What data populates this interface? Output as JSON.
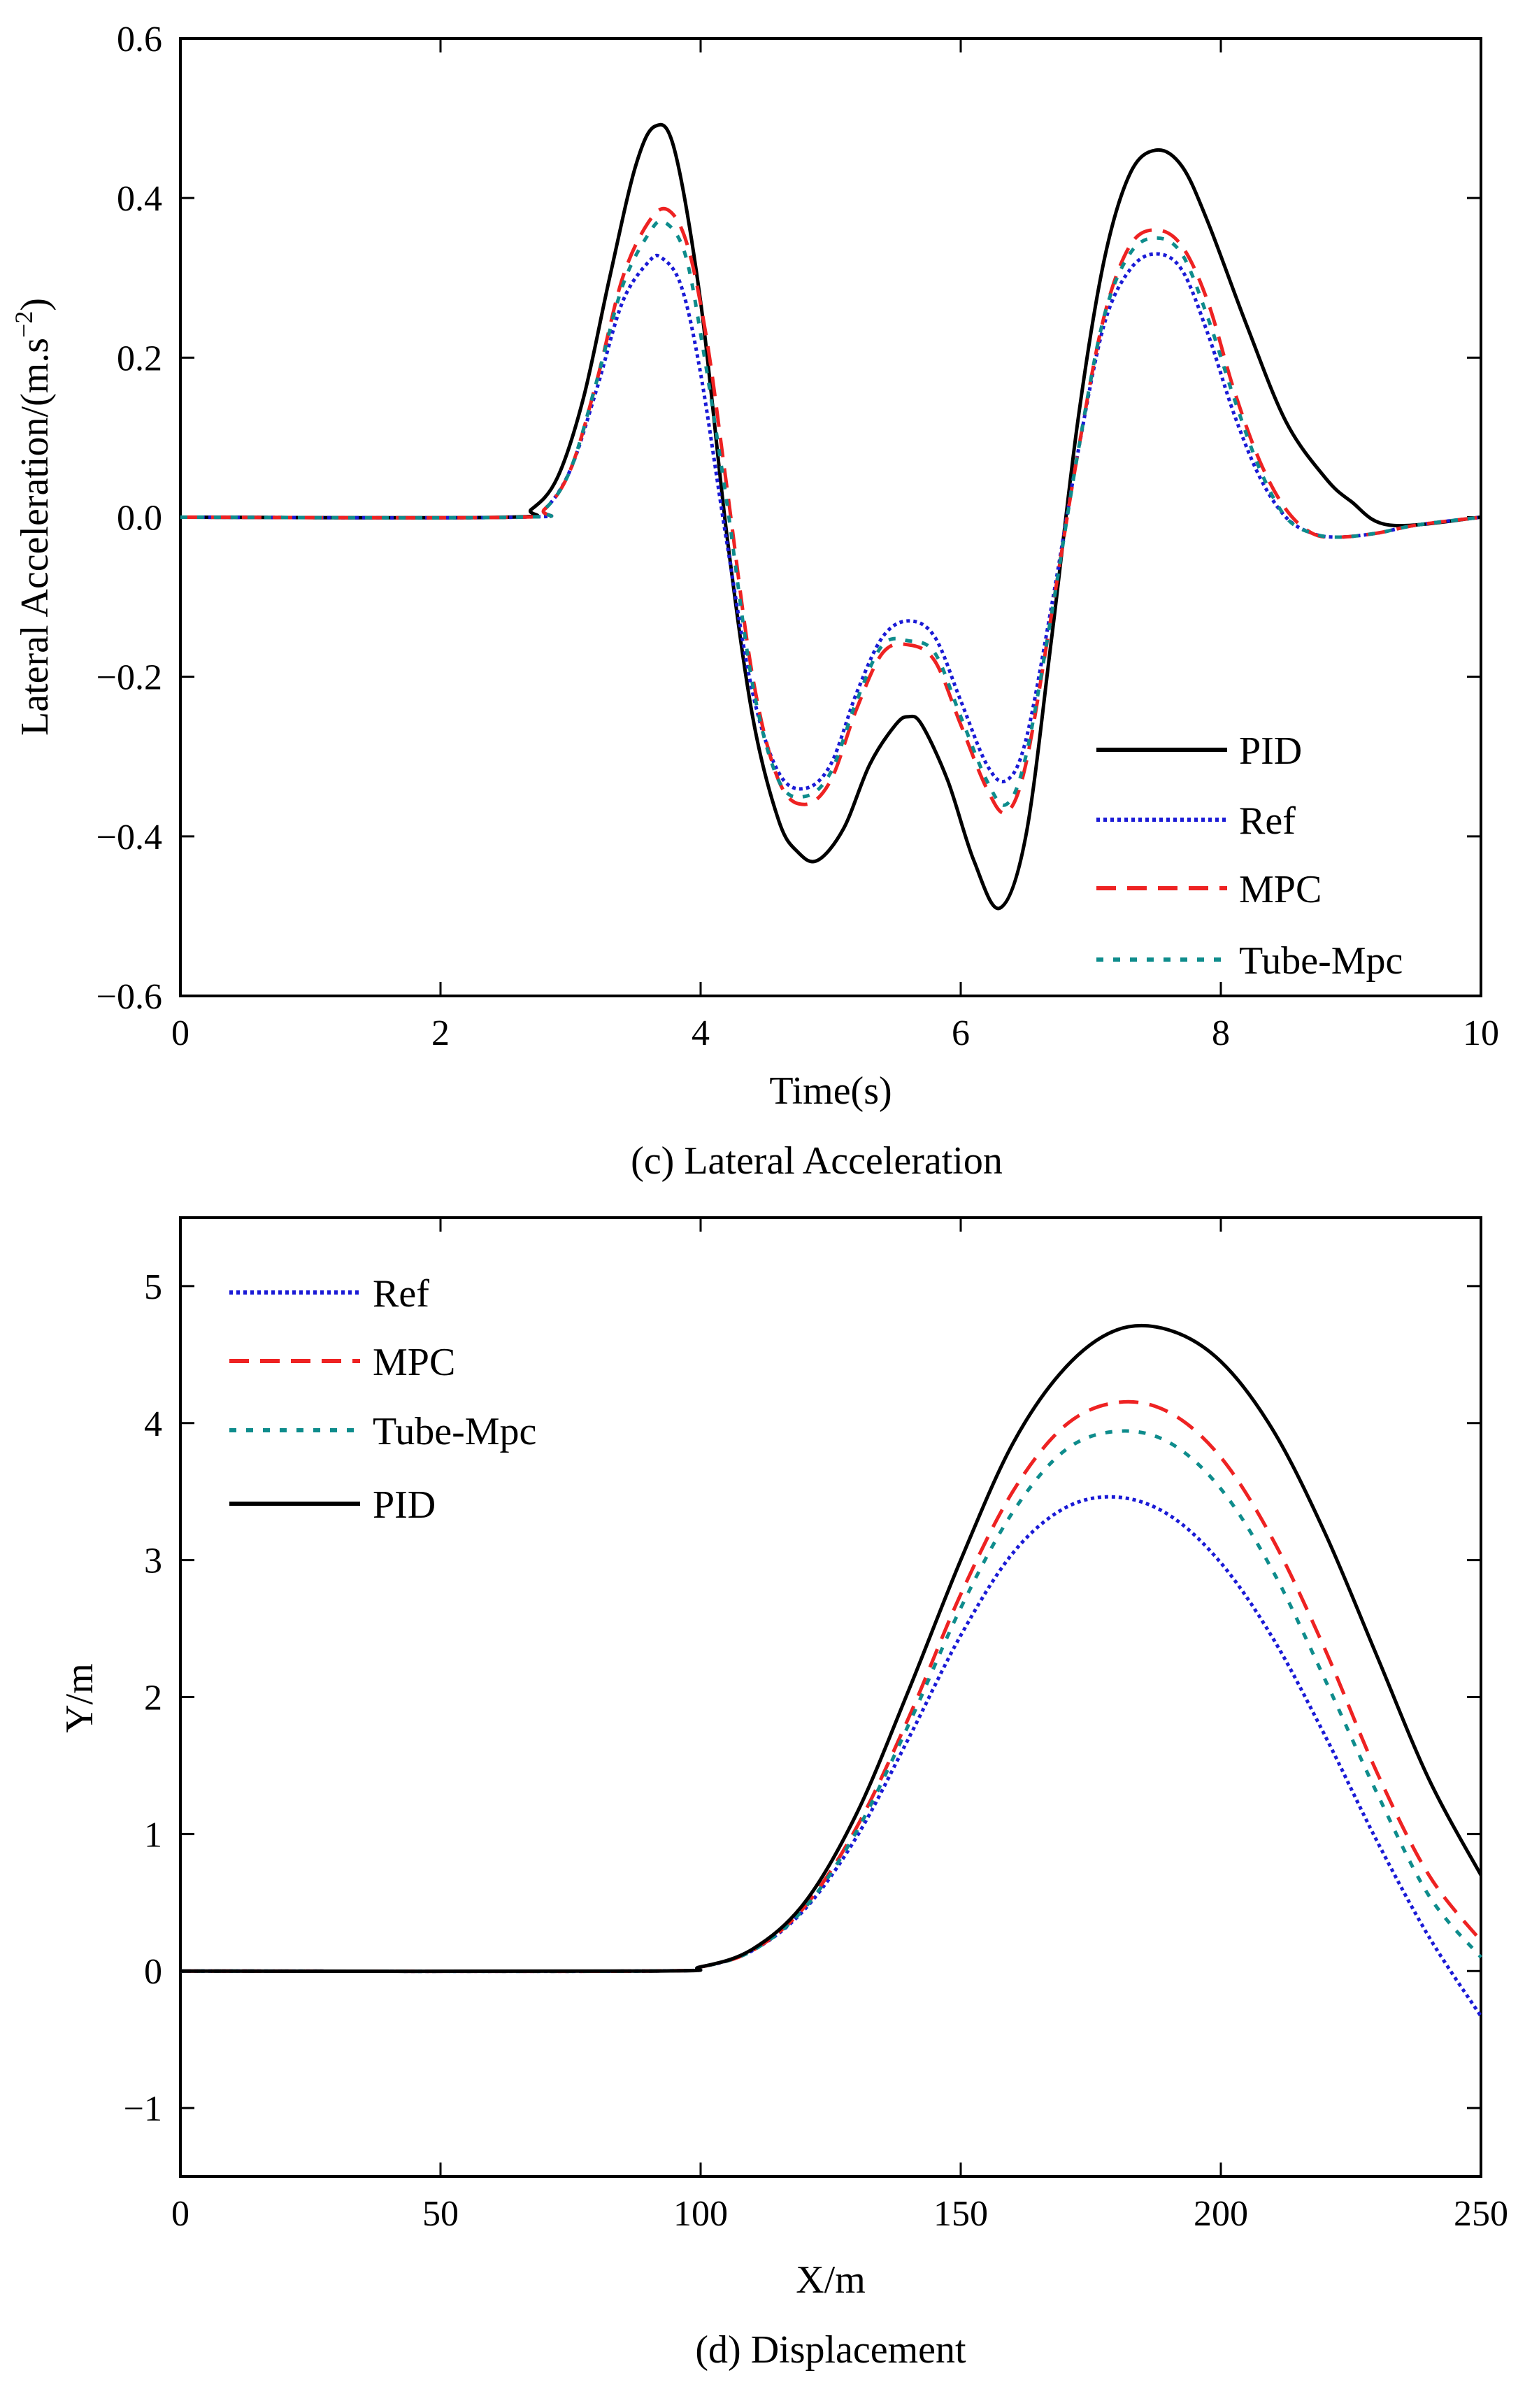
{
  "chart_data": [
    {
      "type": "line",
      "title": "",
      "caption": "(c) Lateral Acceleration",
      "xlabel": "Time(s)",
      "ylabel": "Lateral Acceleration/(m.s",
      "ylabel_sup": "−2",
      "ylabel_close": ")",
      "xlim": [
        0,
        10
      ],
      "ylim": [
        -0.6,
        0.6
      ],
      "xticks": [
        0,
        2,
        4,
        6,
        8,
        10
      ],
      "xtick_labels": [
        "0",
        "2",
        "4",
        "6",
        "8",
        "10"
      ],
      "yticks": [
        -0.6,
        -0.4,
        -0.2,
        0.0,
        0.2,
        0.4,
        0.6
      ],
      "ytick_labels": [
        "−0.6",
        "−0.4",
        "−0.2",
        "0.0",
        "0.2",
        "0.4",
        "0.6"
      ],
      "legend_position": "bottom-right",
      "legend_order": [
        "PID",
        "Ref",
        "MPC",
        "Tube-Mpc"
      ],
      "series": [
        {
          "name": "PID",
          "color": "#000000",
          "style": "solid",
          "x": [
            0,
            2.5,
            2.7,
            2.9,
            3.1,
            3.3,
            3.5,
            3.65,
            3.8,
            4.0,
            4.2,
            4.4,
            4.6,
            4.75,
            4.9,
            5.1,
            5.3,
            5.5,
            5.6,
            5.7,
            5.9,
            6.1,
            6.3,
            6.5,
            6.7,
            6.9,
            7.1,
            7.3,
            7.5,
            7.7,
            7.9,
            8.2,
            8.5,
            8.8,
            9.0,
            9.3,
            10.0
          ],
          "y": [
            0,
            0,
            0.01,
            0.05,
            0.15,
            0.3,
            0.44,
            0.49,
            0.46,
            0.27,
            -0.02,
            -0.25,
            -0.38,
            -0.42,
            -0.43,
            -0.39,
            -0.31,
            -0.26,
            -0.25,
            -0.26,
            -0.33,
            -0.43,
            -0.49,
            -0.4,
            -0.15,
            0.12,
            0.32,
            0.43,
            0.46,
            0.44,
            0.37,
            0.24,
            0.12,
            0.05,
            0.02,
            -0.01,
            0.0
          ]
        },
        {
          "name": "Ref",
          "color": "#1a1ad6",
          "style": "dotted",
          "x": [
            0,
            2.6,
            2.8,
            3.0,
            3.2,
            3.4,
            3.6,
            3.7,
            3.85,
            4.0,
            4.2,
            4.4,
            4.6,
            4.8,
            5.0,
            5.2,
            5.4,
            5.6,
            5.8,
            6.0,
            6.2,
            6.35,
            6.5,
            6.7,
            6.9,
            7.1,
            7.3,
            7.5,
            7.7,
            7.9,
            8.1,
            8.3,
            8.5,
            8.7,
            8.9,
            9.2,
            9.5,
            10.0
          ],
          "y": [
            0,
            0,
            0.01,
            0.06,
            0.16,
            0.27,
            0.32,
            0.325,
            0.29,
            0.18,
            -0.03,
            -0.22,
            -0.32,
            -0.34,
            -0.31,
            -0.22,
            -0.15,
            -0.13,
            -0.15,
            -0.23,
            -0.31,
            -0.33,
            -0.28,
            -0.11,
            0.08,
            0.24,
            0.31,
            0.33,
            0.31,
            0.23,
            0.13,
            0.05,
            0.0,
            -0.02,
            -0.025,
            -0.02,
            -0.01,
            0.0
          ]
        },
        {
          "name": "MPC",
          "color": "#ee2222",
          "style": "dashed",
          "x": [
            0,
            2.6,
            2.8,
            3.0,
            3.2,
            3.4,
            3.6,
            3.75,
            3.9,
            4.05,
            4.2,
            4.4,
            4.6,
            4.8,
            5.0,
            5.2,
            5.4,
            5.6,
            5.8,
            6.0,
            6.2,
            6.35,
            6.5,
            6.7,
            6.9,
            7.1,
            7.3,
            7.5,
            7.7,
            7.9,
            8.1,
            8.3,
            8.5,
            8.7,
            8.9,
            9.2,
            9.5,
            10.0
          ],
          "y": [
            0,
            0,
            0.01,
            0.06,
            0.17,
            0.3,
            0.37,
            0.385,
            0.34,
            0.22,
            0.04,
            -0.2,
            -0.33,
            -0.36,
            -0.33,
            -0.24,
            -0.17,
            -0.16,
            -0.18,
            -0.26,
            -0.34,
            -0.37,
            -0.31,
            -0.12,
            0.08,
            0.25,
            0.34,
            0.36,
            0.34,
            0.27,
            0.16,
            0.07,
            0.01,
            -0.02,
            -0.025,
            -0.02,
            -0.01,
            0.0
          ]
        },
        {
          "name": "Tube-Mpc",
          "color": "#0e8c8c",
          "style": "dotted-wide",
          "x": [
            0,
            2.6,
            2.8,
            3.0,
            3.2,
            3.4,
            3.6,
            3.72,
            3.88,
            4.02,
            4.2,
            4.4,
            4.6,
            4.8,
            5.0,
            5.2,
            5.4,
            5.6,
            5.8,
            6.0,
            6.2,
            6.35,
            6.5,
            6.7,
            6.9,
            7.1,
            7.3,
            7.5,
            7.7,
            7.9,
            8.1,
            8.3,
            8.5,
            8.7,
            8.9,
            9.2,
            9.5,
            10.0
          ],
          "y": [
            0,
            0,
            0.01,
            0.06,
            0.17,
            0.29,
            0.355,
            0.37,
            0.33,
            0.21,
            0.02,
            -0.21,
            -0.33,
            -0.35,
            -0.32,
            -0.23,
            -0.16,
            -0.155,
            -0.17,
            -0.25,
            -0.33,
            -0.36,
            -0.3,
            -0.12,
            0.08,
            0.25,
            0.33,
            0.35,
            0.33,
            0.25,
            0.15,
            0.06,
            0.0,
            -0.02,
            -0.025,
            -0.02,
            -0.01,
            0.0
          ]
        }
      ]
    },
    {
      "type": "line",
      "title": "",
      "caption": "(d)  Displacement",
      "xlabel": "X/m",
      "ylabel": "Y/m",
      "xlim": [
        0,
        250
      ],
      "ylim": [
        -1.5,
        5.5
      ],
      "xticks": [
        0,
        50,
        100,
        150,
        200,
        250
      ],
      "xtick_labels": [
        "0",
        "50",
        "100",
        "150",
        "200",
        "250"
      ],
      "yticks": [
        -1,
        0,
        1,
        2,
        3,
        4,
        5
      ],
      "ytick_labels": [
        "−1",
        "0",
        "1",
        "2",
        "3",
        "4",
        "5"
      ],
      "legend_position": "top-left",
      "legend_order": [
        "Ref",
        "MPC",
        "Tube-Mpc",
        "PID"
      ],
      "series": [
        {
          "name": "Ref",
          "color": "#1a1ad6",
          "style": "dotted",
          "x": [
            0,
            90,
            100,
            110,
            120,
            130,
            140,
            150,
            160,
            170,
            180,
            190,
            200,
            210,
            220,
            230,
            240,
            250
          ],
          "y": [
            0,
            0,
            0.03,
            0.15,
            0.45,
            0.98,
            1.7,
            2.45,
            3.05,
            3.38,
            3.46,
            3.33,
            2.98,
            2.43,
            1.72,
            0.95,
            0.25,
            -0.33
          ]
        },
        {
          "name": "MPC",
          "color": "#ee2222",
          "style": "dashed",
          "x": [
            0,
            90,
            100,
            110,
            120,
            130,
            140,
            150,
            160,
            170,
            180,
            190,
            200,
            210,
            220,
            230,
            240,
            250
          ],
          "y": [
            0,
            0,
            0.03,
            0.15,
            0.47,
            1.05,
            1.85,
            2.75,
            3.5,
            3.98,
            4.15,
            4.08,
            3.75,
            3.15,
            2.35,
            1.45,
            0.7,
            0.22
          ]
        },
        {
          "name": "Tube-Mpc",
          "color": "#0e8c8c",
          "style": "dotted-wide",
          "x": [
            0,
            90,
            100,
            110,
            120,
            130,
            140,
            150,
            160,
            170,
            180,
            190,
            200,
            210,
            220,
            230,
            240,
            250
          ],
          "y": [
            0,
            0,
            0.03,
            0.15,
            0.46,
            1.02,
            1.8,
            2.65,
            3.35,
            3.8,
            3.94,
            3.86,
            3.52,
            2.92,
            2.13,
            1.3,
            0.55,
            0.1
          ]
        },
        {
          "name": "PID",
          "color": "#000000",
          "style": "solid",
          "x": [
            0,
            90,
            100,
            110,
            120,
            130,
            140,
            150,
            160,
            170,
            180,
            190,
            200,
            210,
            220,
            230,
            240,
            250
          ],
          "y": [
            0,
            0,
            0.03,
            0.16,
            0.5,
            1.15,
            2.05,
            3.0,
            3.85,
            4.4,
            4.68,
            4.68,
            4.45,
            3.95,
            3.2,
            2.3,
            1.4,
            0.7
          ]
        }
      ]
    }
  ]
}
